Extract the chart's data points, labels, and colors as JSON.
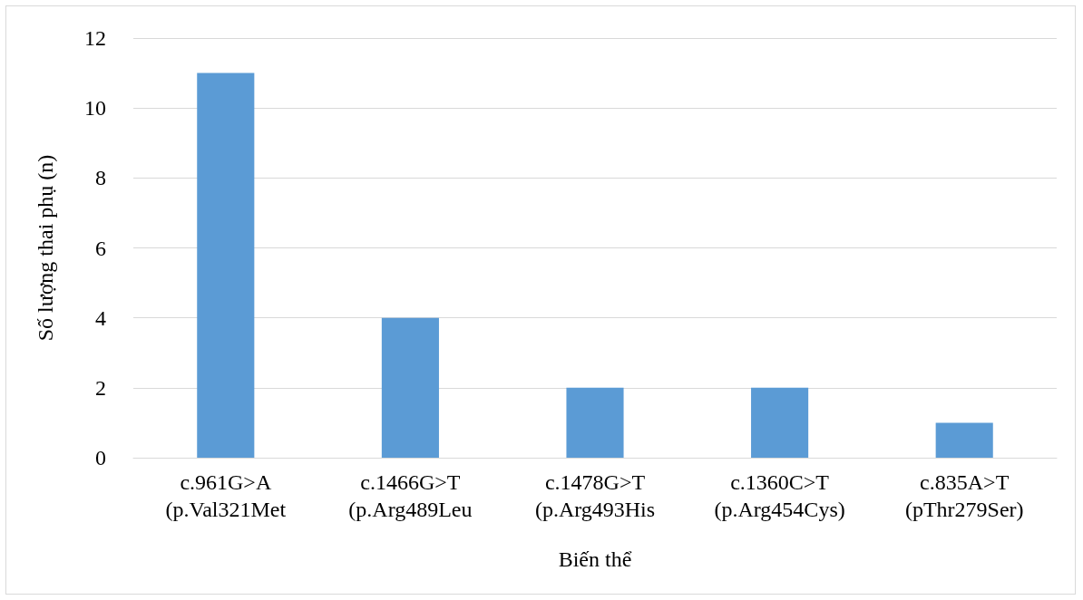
{
  "chart_data": {
    "type": "bar",
    "xlabel": "Biến thể",
    "ylabel": "Số lượng thai phụ (n)",
    "categories": [
      "c.961G>A\n(p.Val321Met",
      "c.1466G>T\n(p.Arg489Leu",
      "c.1478G>T\n(p.Arg493His",
      "c.1360C>T\n(p.Arg454Cys)",
      "c.835A>T\n(pThr279Ser)"
    ],
    "values": [
      11,
      4,
      2,
      2,
      1
    ],
    "color": "#5b9bd5",
    "ylim": [
      0,
      12
    ],
    "yticks": [
      0,
      2,
      4,
      6,
      8,
      10,
      12
    ],
    "grid": "y"
  }
}
